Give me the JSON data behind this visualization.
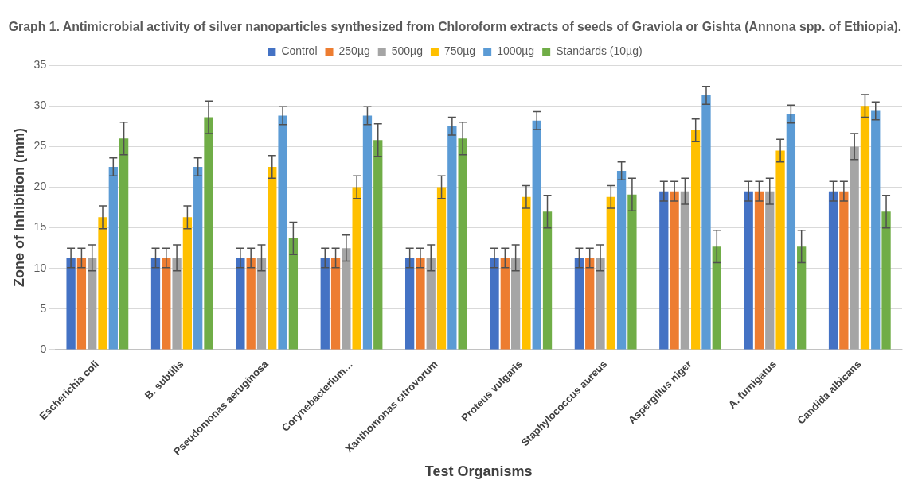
{
  "chart_data": {
    "type": "bar",
    "title": "Graph 1. Antimicrobial activity of silver nanoparticles synthesized from Chloroform extracts of seeds of Graviola or Gishta (Annona spp. of Ethiopia).",
    "xlabel": "Test Organisms",
    "ylabel": "Zone of Inhibition (mm)",
    "categories": [
      "Escherichia coli",
      "B. subtilis",
      "Pseudomonas aeruginosa",
      "Corynebacterium…",
      "Xanthomonas citrovorum",
      "Proteus vulgaris",
      "Staphylococcus aureus",
      "Aspergillus niger",
      "A. fumigatus",
      "Candida albicans"
    ],
    "series": [
      {
        "name": "Control",
        "color": "#4472c4",
        "values": [
          11.3,
          11.3,
          11.3,
          11.3,
          11.3,
          11.3,
          11.3,
          19.5,
          19.5,
          19.5
        ],
        "errors": [
          1.2,
          1.2,
          1.2,
          1.2,
          1.2,
          1.2,
          1.2,
          1.2,
          1.2,
          1.2
        ]
      },
      {
        "name": "250µg",
        "color": "#ed7d31",
        "values": [
          11.3,
          11.3,
          11.3,
          11.3,
          11.3,
          11.3,
          11.3,
          19.5,
          19.5,
          19.5
        ],
        "errors": [
          1.2,
          1.2,
          1.2,
          1.2,
          1.2,
          1.2,
          1.2,
          1.2,
          1.2,
          1.2
        ]
      },
      {
        "name": "500µg",
        "color": "#a5a5a5",
        "values": [
          11.3,
          11.3,
          11.3,
          12.5,
          11.3,
          11.3,
          11.3,
          19.5,
          19.5,
          25
        ],
        "errors": [
          1.6,
          1.6,
          1.6,
          1.6,
          1.6,
          1.6,
          1.6,
          1.6,
          1.6,
          1.6
        ]
      },
      {
        "name": "750µg",
        "color": "#ffc000",
        "values": [
          16.3,
          16.3,
          22.5,
          20,
          20,
          18.8,
          18.8,
          27,
          24.5,
          30
        ],
        "errors": [
          1.4,
          1.4,
          1.4,
          1.4,
          1.4,
          1.4,
          1.4,
          1.4,
          1.4,
          1.4
        ]
      },
      {
        "name": "1000µg",
        "color": "#5b9bd5",
        "values": [
          22.5,
          22.5,
          28.8,
          28.8,
          27.5,
          28.2,
          22,
          31.3,
          29,
          29.4
        ],
        "errors": [
          1.1,
          1.1,
          1.1,
          1.1,
          1.1,
          1.1,
          1.1,
          1.1,
          1.1,
          1.1
        ]
      },
      {
        "name": "Standards (10µg)",
        "color": "#70ad47",
        "values": [
          26,
          28.6,
          13.7,
          25.8,
          26,
          17,
          19.1,
          12.7,
          12.7,
          17
        ],
        "errors": [
          2,
          2,
          2,
          2,
          2,
          2,
          2,
          2,
          2,
          2
        ]
      }
    ],
    "ylim": [
      0,
      35
    ],
    "yticks": [
      0,
      5,
      10,
      15,
      20,
      25,
      30,
      35
    ],
    "grid": "y",
    "legend": "top"
  }
}
